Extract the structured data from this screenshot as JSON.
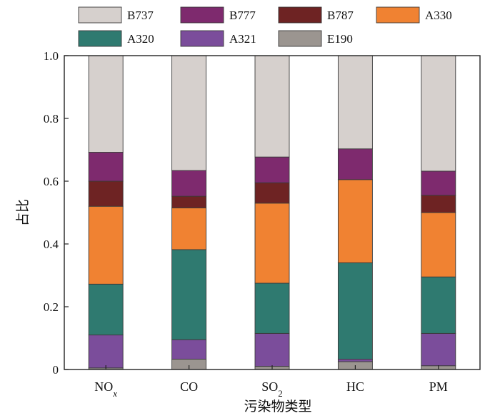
{
  "chart_data": {
    "type": "bar",
    "stacked": true,
    "categories": [
      "NOx",
      "CO",
      "SO2",
      "HC",
      "PM"
    ],
    "xlabel": "污染物类型",
    "ylabel": "占比",
    "ylim": [
      0,
      1.0
    ],
    "yticks": [
      "0",
      "0.2",
      "0.4",
      "0.6",
      "0.8",
      "1.0"
    ],
    "legend_position": "top",
    "series": [
      {
        "name": "E190",
        "color": "#9b9590",
        "values": [
          0.005,
          0.033,
          0.01,
          0.025,
          0.012
        ]
      },
      {
        "name": "A321",
        "color": "#7b4d9b",
        "values": [
          0.105,
          0.062,
          0.105,
          0.008,
          0.103
        ]
      },
      {
        "name": "A320",
        "color": "#2f7a70",
        "values": [
          0.162,
          0.287,
          0.16,
          0.307,
          0.18
        ]
      },
      {
        "name": "A330",
        "color": "#f08232",
        "values": [
          0.248,
          0.133,
          0.255,
          0.265,
          0.205
        ]
      },
      {
        "name": "B787",
        "color": "#6e2323",
        "values": [
          0.08,
          0.037,
          0.065,
          0.0,
          0.055
        ]
      },
      {
        "name": "B777",
        "color": "#7e2a6e",
        "values": [
          0.092,
          0.082,
          0.082,
          0.098,
          0.077
        ]
      },
      {
        "name": "B737",
        "color": "#d6d0cd",
        "values": [
          0.308,
          0.366,
          0.323,
          0.297,
          0.368
        ]
      }
    ],
    "legend_order": [
      "B737",
      "B777",
      "B787",
      "A330",
      "A320",
      "A321",
      "E190"
    ]
  }
}
